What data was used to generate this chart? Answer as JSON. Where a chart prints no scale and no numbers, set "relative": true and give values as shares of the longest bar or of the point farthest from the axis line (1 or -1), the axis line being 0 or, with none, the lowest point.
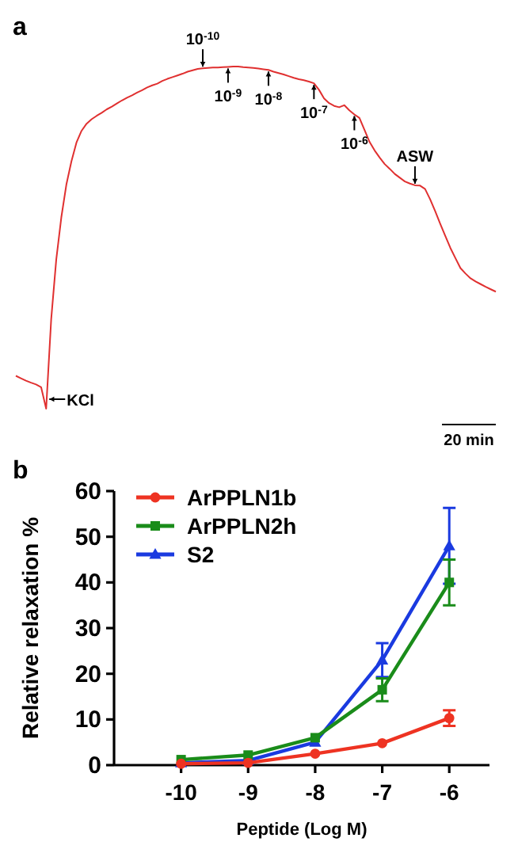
{
  "chart_data": [
    {
      "type": "line",
      "title": "a",
      "relative": true,
      "categories": [
        null,
        null,
        null,
        null,
        null,
        null,
        null,
        null,
        null,
        null,
        null,
        null,
        null,
        null,
        null,
        null,
        null,
        null,
        null,
        null,
        null,
        null,
        null,
        null,
        null,
        null,
        null,
        null,
        null,
        null,
        null,
        null,
        null,
        null,
        null,
        null,
        null,
        null,
        null,
        null,
        null,
        null,
        null,
        null,
        null,
        null,
        null,
        null,
        null,
        null,
        null,
        null,
        null,
        null,
        null,
        null,
        null,
        null,
        null,
        null,
        null,
        null,
        null,
        null,
        null,
        null,
        null,
        null,
        null,
        null,
        null,
        null,
        null,
        null,
        null,
        null,
        null,
        null,
        null,
        null,
        null,
        null,
        null,
        null,
        null,
        null,
        null,
        null,
        null,
        null,
        null,
        null,
        null,
        null,
        null,
        null
      ],
      "series": [
        {
          "color": "#e03030",
          "values": [
            0.096,
            0.089,
            0.082,
            0.076,
            0.071,
            0.063,
            0,
            0.262,
            0.436,
            0.559,
            0.655,
            0.723,
            0.778,
            0.812,
            0.833,
            0.846,
            0.856,
            0.865,
            0.875,
            0.883,
            0.892,
            0.901,
            0.909,
            0.916,
            0.924,
            0.931,
            0.939,
            0.945,
            0.95,
            0.958,
            0.964,
            0.969,
            0.974,
            0.979,
            0.985,
            0.989,
            0.993,
            0.995,
            0.996,
            0.997,
            0.997,
            0.998,
            0.999,
            1,
            1,
            0.998,
            0.997,
            0.996,
            0.994,
            0.992,
            0.99,
            0.985,
            0.981,
            0.977,
            0.972,
            0.967,
            0.963,
            0.96,
            0.956,
            0.951,
            0.932,
            0.907,
            0.893,
            0.885,
            0.881,
            0.887,
            0.872,
            0.86,
            0.85,
            0.815,
            0.78,
            0.755,
            0.734,
            0.715,
            0.701,
            0.686,
            0.675,
            0.664,
            0.658,
            0.653,
            0.652,
            0.642,
            0.612,
            0.577,
            0.54,
            0.505,
            0.47,
            0.44,
            0.411,
            0.395,
            0.381,
            0.372,
            0.364,
            0.356,
            0.349,
            0.342
          ]
        }
      ],
      "annotations": [
        {
          "text": "10$^{-10}$",
          "y": 0.995
        },
        {
          "text": "10$^{-9}$",
          "y": 0.999
        },
        {
          "text": "10$^{-8}$",
          "y": 0.99
        },
        {
          "text": "10$^{-7}$",
          "y": 0.951
        },
        {
          "text": "10$^{-6}$",
          "y": 0.86
        },
        {
          "text": "ASW",
          "y": 0.653
        },
        "KCl",
        "20 min"
      ]
    },
    {
      "type": "line",
      "title": "b",
      "xlabel": "Peptide (Log M)",
      "ylabel": "Relative relaxation %",
      "xlim": [
        -11,
        -5.4
      ],
      "xticks": [
        -10,
        -9,
        -8,
        -7,
        -6
      ],
      "ylim": [
        0,
        60
      ],
      "yticks": [
        0,
        10,
        20,
        30,
        40,
        50,
        60
      ],
      "legend": "top left",
      "x": [
        -10,
        -9,
        -8,
        -7,
        -6
      ],
      "series": [
        {
          "name": "ArPPLN1b",
          "color": "#ee3322",
          "marker": "circle",
          "values": [
            0.3,
            0.5,
            2.5,
            4.8,
            10.3
          ],
          "errors": [
            null,
            null,
            null,
            null,
            1.7
          ]
        },
        {
          "name": "ArPPLN2h",
          "color": "#1a8c1a",
          "marker": "square",
          "values": [
            1.2,
            2.2,
            6,
            16.5,
            40
          ],
          "errors": [
            null,
            null,
            null,
            2.5,
            5
          ]
        },
        {
          "name": "S2",
          "color": "#1a3ae0",
          "marker": "triangle",
          "values": [
            0.5,
            1,
            5,
            23,
            48
          ],
          "errors": [
            null,
            null,
            null,
            3.7,
            8.3
          ]
        }
      ]
    }
  ]
}
